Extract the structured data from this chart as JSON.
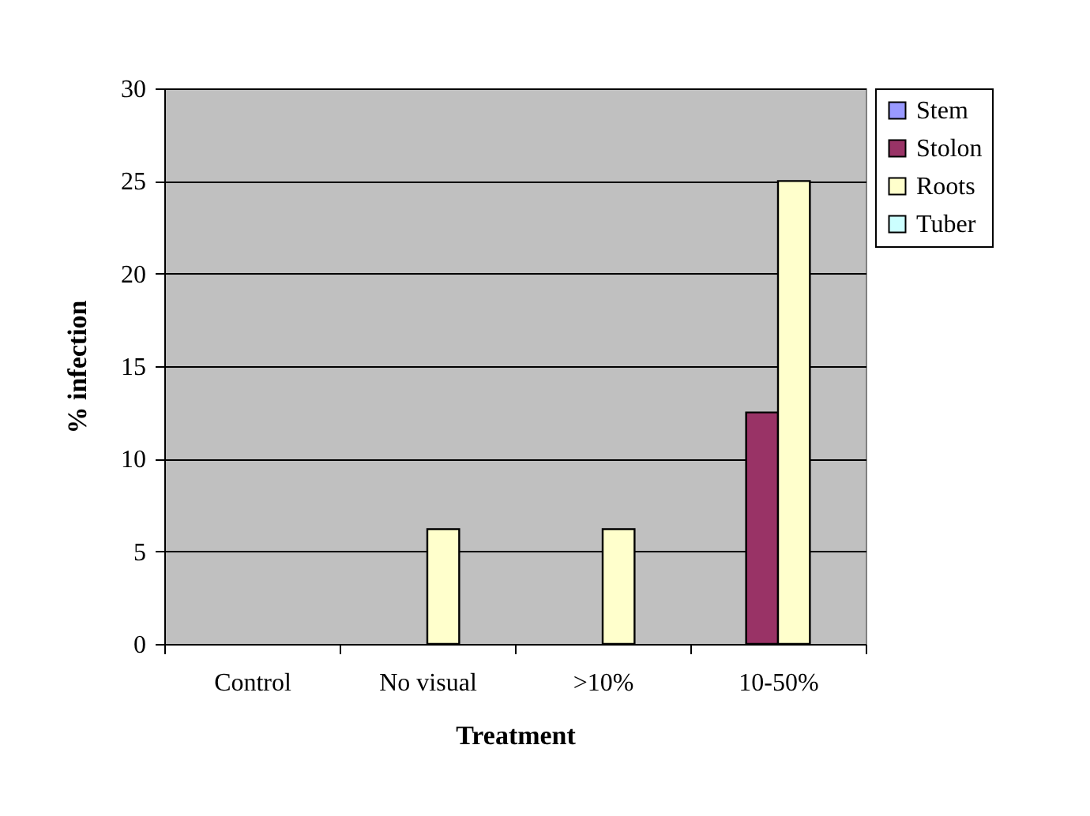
{
  "chart_data": {
    "type": "bar",
    "xlabel": "Treatment",
    "ylabel": "% infection",
    "categories": [
      "Control",
      "No visual",
      ">10%",
      "10-50%"
    ],
    "series": [
      {
        "name": "Stem",
        "color": "#9999ff",
        "values": [
          0,
          0,
          0,
          0
        ]
      },
      {
        "name": "Stolon",
        "color": "#993366",
        "values": [
          0,
          0,
          0,
          12.5
        ]
      },
      {
        "name": "Roots",
        "color": "#ffffcc",
        "values": [
          0,
          6.2,
          6.2,
          25
        ]
      },
      {
        "name": "Tuber",
        "color": "#ccffff",
        "values": [
          0,
          0,
          0,
          0
        ]
      }
    ],
    "ylim": [
      0,
      30
    ],
    "yticks": [
      0,
      5,
      10,
      15,
      20,
      25,
      30
    ],
    "grid": "y",
    "legend": "right"
  }
}
